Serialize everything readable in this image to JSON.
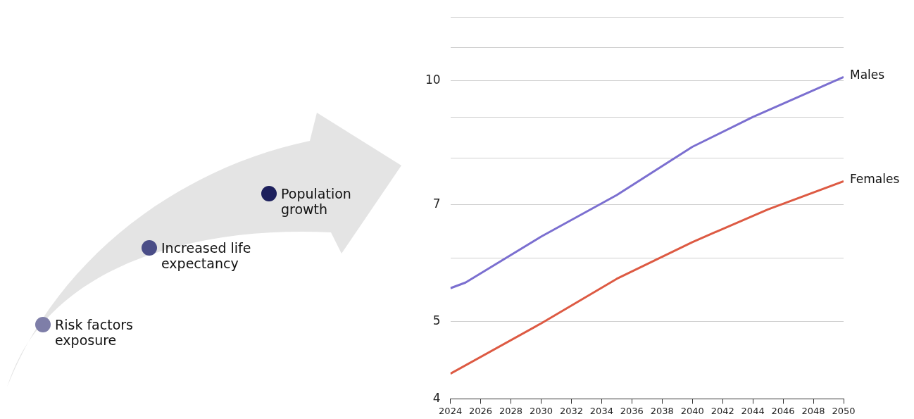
{
  "chart_data": {
    "type": "line",
    "log": "y",
    "grid": "y",
    "legend": false,
    "marker": "none",
    "line_style": "solid",
    "x": [
      2024,
      2025,
      2030,
      2035,
      2040,
      2044,
      2045,
      2050
    ],
    "series": [
      {
        "name": "Males",
        "color": "#7b6fd0",
        "values": [
          5.5,
          5.59,
          6.38,
          7.19,
          8.26,
          9.0,
          null,
          10.1
        ]
      },
      {
        "name": "Females",
        "color": "#dd5a43",
        "values": [
          4.3,
          null,
          4.97,
          5.65,
          6.28,
          null,
          6.9,
          7.48
        ]
      }
    ],
    "xlim": [
      2024,
      2050
    ],
    "xticks": [
      2024,
      2026,
      2028,
      2030,
      2032,
      2034,
      2036,
      2038,
      2040,
      2042,
      2044,
      2046,
      2048,
      2050
    ],
    "ylim": [
      4,
      12
    ],
    "yticks": [
      4,
      5,
      {
        "value": 6,
        "label": null
      },
      7,
      {
        "value": 8,
        "label": null
      },
      {
        "value": 9,
        "label": null
      },
      10,
      {
        "value": 11,
        "label": null
      },
      {
        "value": 12,
        "label": null
      }
    ],
    "annotations": [
      "Risk factors exposure",
      "Increased life expectancy",
      "Population growth"
    ]
  }
}
